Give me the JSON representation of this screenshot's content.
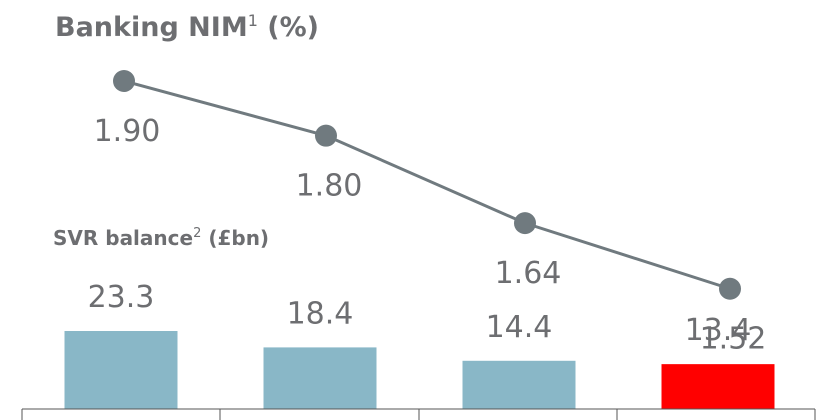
{
  "chart_data": [
    {
      "type": "line",
      "title_main": "Banking NIM",
      "title_sup": "1",
      "title_unit": " (%)",
      "values": [
        1.9,
        1.8,
        1.64,
        1.52
      ],
      "value_labels": [
        "1.90",
        "1.80",
        "1.64",
        "1.52"
      ],
      "colors": {
        "line": "#707a7f",
        "marker": "#707a7f"
      }
    },
    {
      "type": "bar",
      "title_main": "SVR balance",
      "title_sup": "2",
      "title_unit": " (£bn)",
      "values": [
        23.3,
        18.4,
        14.4,
        13.4
      ],
      "value_labels": [
        "23.3",
        "18.4",
        "14.4",
        "13.4"
      ],
      "colors": [
        "#89b7c7",
        "#89b7c7",
        "#89b7c7",
        "#ff0000"
      ]
    }
  ]
}
